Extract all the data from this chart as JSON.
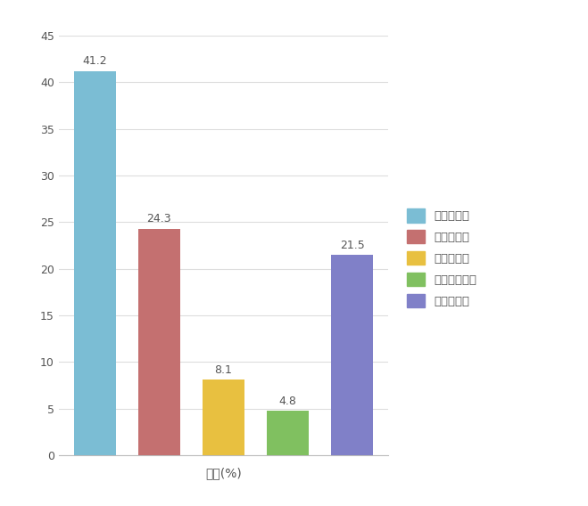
{
  "categories": [
    "전혀아니다",
    "그렇지않다",
    "그저그렇다",
    "대체로그렇다",
    "매우그렇다"
  ],
  "values": [
    41.2,
    24.3,
    8.1,
    4.8,
    21.5
  ],
  "bar_colors": [
    "#7bbdd4",
    "#c47070",
    "#e8c040",
    "#80c060",
    "#8080c8"
  ],
  "xlabel": "비율(%)",
  "ylim": [
    0,
    45
  ],
  "yticks": [
    0,
    5,
    10,
    15,
    20,
    25,
    30,
    35,
    40,
    45
  ],
  "label_fontsize": 9,
  "xlabel_fontsize": 10,
  "legend_labels": [
    "전혀아니다",
    "그렇지않다",
    "그저그렇다",
    "대체로그렇다",
    "매우그렇다"
  ],
  "legend_colors": [
    "#7bbdd4",
    "#c47070",
    "#e8c040",
    "#80c060",
    "#8080c8"
  ],
  "background_color": "#ffffff",
  "grid_color": "#dddddd",
  "text_color": "#555555"
}
